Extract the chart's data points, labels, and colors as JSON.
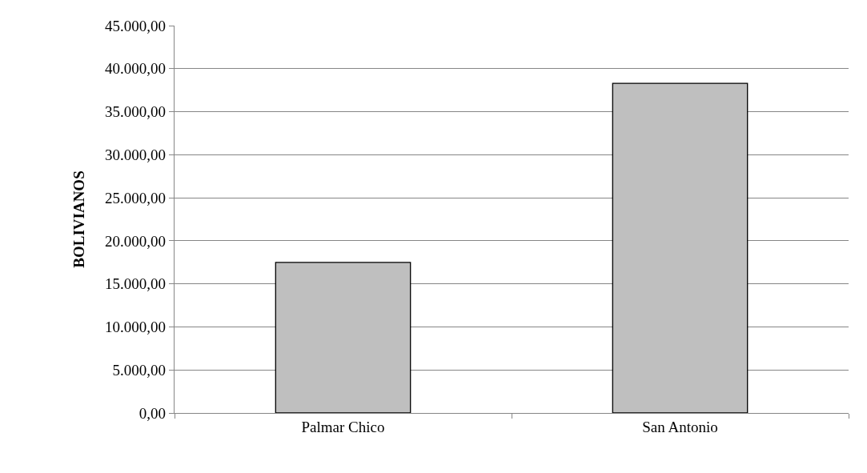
{
  "chart_data": {
    "type": "bar",
    "ylabel": "BOLIVIANOS",
    "categories": [
      "Palmar Chico",
      "San Antonio"
    ],
    "values": [
      17500,
      38300
    ],
    "color": "#bfbfbf",
    "ylim": [
      0,
      45000
    ],
    "yticks": [
      {
        "value": 0,
        "label": "0,00"
      },
      {
        "value": 5000,
        "label": "5.000,00"
      },
      {
        "value": 10000,
        "label": "10.000,00"
      },
      {
        "value": 15000,
        "label": "15.000,00"
      },
      {
        "value": 20000,
        "label": "20.000,00"
      },
      {
        "value": 25000,
        "label": "25.000,00"
      },
      {
        "value": 30000,
        "label": "30.000,00"
      },
      {
        "value": 35000,
        "label": "35.000,00"
      },
      {
        "value": 40000,
        "label": "40.000,00"
      },
      {
        "value": 45000,
        "label": "45.000,00"
      }
    ],
    "grid": "y",
    "legend": false
  }
}
